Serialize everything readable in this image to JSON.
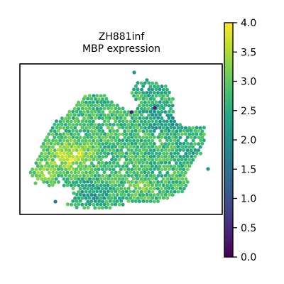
{
  "chart_data": {
    "type": "heatmap",
    "subtype": "spatial-spot-map",
    "title_line1": "ZH881inf",
    "title_line2": "MBP expression",
    "xlabel": "",
    "ylabel": "",
    "colormap": "viridis",
    "color_range": [
      0.0,
      4.0
    ],
    "colorbar_ticks": [
      {
        "value": 0.0,
        "label": "0.0"
      },
      {
        "value": 0.5,
        "label": "0.5"
      },
      {
        "value": 1.0,
        "label": "1.0"
      },
      {
        "value": 1.5,
        "label": "1.5"
      },
      {
        "value": 2.0,
        "label": "2.0"
      },
      {
        "value": 2.5,
        "label": "2.5"
      },
      {
        "value": 3.0,
        "label": "3.0"
      },
      {
        "value": 3.5,
        "label": "3.5"
      },
      {
        "value": 4.0,
        "label": "4.0"
      }
    ],
    "spot_count_note": "approx. 1900 spots, expression mostly 2.0-3.8, sparse low outliers (~0.2-1.0)"
  }
}
